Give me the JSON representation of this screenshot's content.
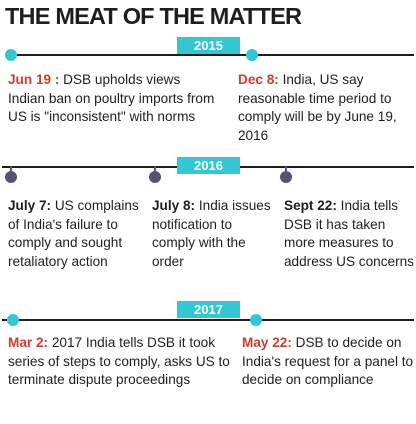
{
  "title": "THE MEAT OF THE MATTER",
  "colors": {
    "accent": "#34c6d2",
    "date_red": "#d53a2a",
    "marker_dark": "#5b4f78",
    "text": "#1e1e1e"
  },
  "years": [
    {
      "label": "2015",
      "events": [
        {
          "date": "Jun 19 :",
          "text": " DSB upholds views Indian ban on poultry imports from US is \"inconsistent\" with norms"
        },
        {
          "date": "Dec 8:",
          "text": " India, US say reasonable time period to comply will be by June 19, 2016"
        }
      ]
    },
    {
      "label": "2016",
      "events": [
        {
          "date": "July 7:",
          "text": " US complains of India's failure to comply and sought retaliatory action"
        },
        {
          "date": "July 8:",
          "text": " India issues notification to comply with the order"
        },
        {
          "date": "Sept 22:",
          "text": " India tells DSB it has taken more measures to address US concerns"
        }
      ]
    },
    {
      "label": "2017",
      "events": [
        {
          "date": "Mar 2:",
          "text": " 2017 India tells DSB it took series of steps to comply, asks US to terminate dispute proceedings"
        },
        {
          "date": "May 22:",
          "text": " DSB to decide on India's request for a panel to decide on compliance"
        }
      ]
    }
  ]
}
